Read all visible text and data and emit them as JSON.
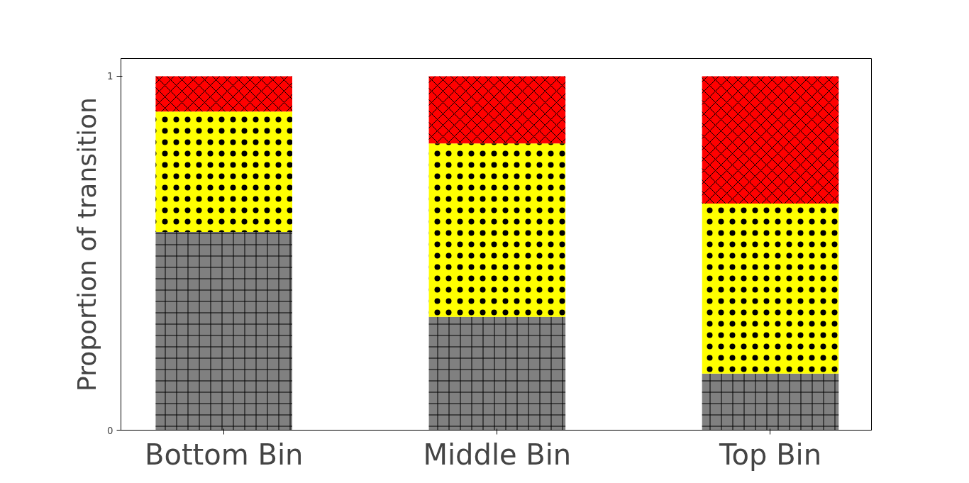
{
  "chart_data": {
    "type": "bar",
    "ylabel": "Proportion of transition",
    "categories": [
      "Bottom Bin",
      "Middle Bin",
      "Top Bin"
    ],
    "stacked": true,
    "ylim": [
      0,
      1.05
    ],
    "yticks": [
      0,
      1
    ],
    "grid": false,
    "series": [
      {
        "color": "#808080",
        "values": [
          0.56,
          0.32,
          0.16
        ]
      },
      {
        "color": "#ffff00",
        "values": [
          0.34,
          0.49,
          0.48
        ]
      },
      {
        "color": "#ff0000",
        "values": [
          0.1,
          0.19,
          0.36
        ]
      }
    ]
  }
}
